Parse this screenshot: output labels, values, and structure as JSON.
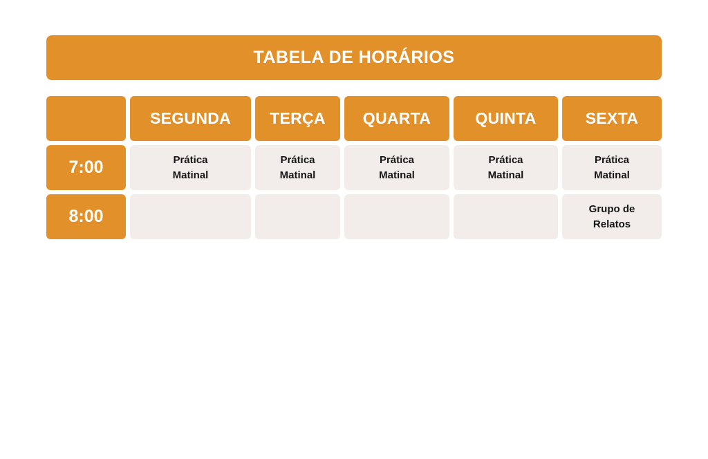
{
  "title": "TABELA DE HORÁRIOS",
  "colors": {
    "accent_orange": "#E2912A",
    "cell_background": "#F2EDEB",
    "cell_text": "#151515",
    "header_text": "#FFFFFF",
    "page_background": "#FFFFFF"
  },
  "table": {
    "day_headers": [
      "SEGUNDA",
      "TERÇA",
      "QUARTA",
      "QUINTA",
      "SEXTA"
    ],
    "rows": [
      {
        "time": "7:00",
        "cells": [
          "Prática\nMatinal",
          "Prática\nMatinal",
          "Prática\nMatinal",
          "Prática\nMatinal",
          "Prática\nMatinal"
        ]
      },
      {
        "time": "8:00",
        "cells": [
          "",
          "",
          "",
          "",
          "Grupo de\nRelatos"
        ]
      }
    ]
  }
}
